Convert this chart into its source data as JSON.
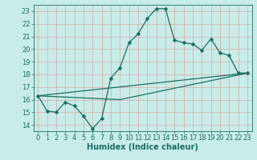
{
  "xlabel": "Humidex (Indice chaleur)",
  "xlim": [
    -0.5,
    23.5
  ],
  "ylim": [
    13.5,
    23.5
  ],
  "yticks": [
    14,
    15,
    16,
    17,
    18,
    19,
    20,
    21,
    22,
    23
  ],
  "xticks": [
    0,
    1,
    2,
    3,
    4,
    5,
    6,
    7,
    8,
    9,
    10,
    11,
    12,
    13,
    14,
    15,
    16,
    17,
    18,
    19,
    20,
    21,
    22,
    23
  ],
  "bg_color": "#c8ece8",
  "grid_color": "#d8a8a8",
  "line_color": "#1a6e62",
  "line1_x": [
    0,
    1,
    2,
    3,
    4,
    5,
    6,
    7,
    8,
    9,
    10,
    11,
    12,
    13,
    14,
    15,
    16,
    17,
    18,
    19,
    20,
    21,
    22,
    23
  ],
  "line1_y": [
    16.3,
    15.1,
    15.0,
    15.8,
    15.5,
    14.7,
    13.7,
    14.5,
    17.7,
    18.5,
    20.5,
    21.2,
    22.4,
    23.2,
    23.2,
    20.7,
    20.5,
    20.4,
    19.9,
    20.8,
    19.7,
    19.5,
    18.1,
    18.1
  ],
  "line2_x": [
    0,
    23
  ],
  "line2_y": [
    16.3,
    18.1
  ],
  "line3_x": [
    0,
    9,
    23
  ],
  "line3_y": [
    16.3,
    16.0,
    18.1
  ],
  "marker": "D",
  "marker_size": 2.5,
  "linewidth": 0.9,
  "font_size_label": 7,
  "font_size_tick": 6
}
